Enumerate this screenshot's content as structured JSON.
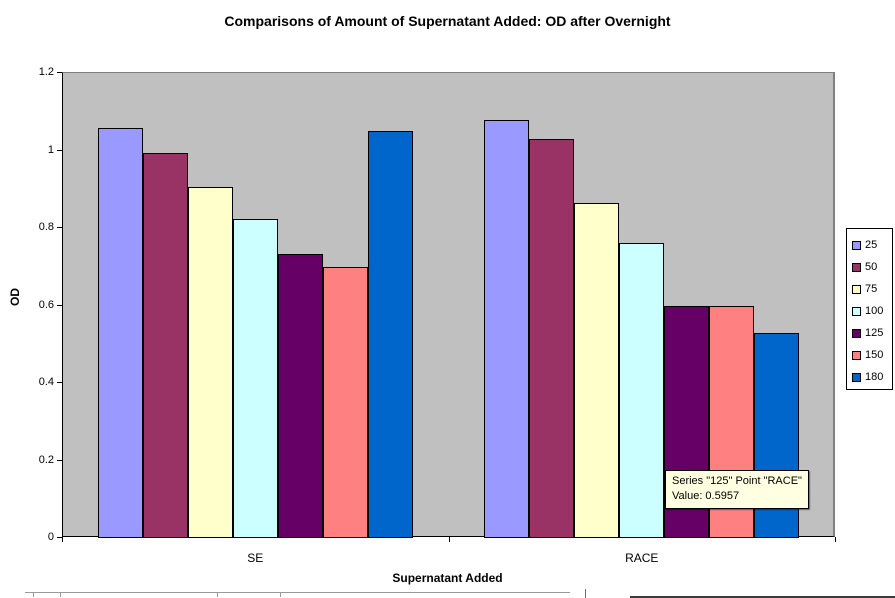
{
  "chart_data": {
    "type": "bar",
    "title": "Comparisons of Amount of Supernatant Added: OD after Overnight",
    "xlabel": "Supernatant Added",
    "ylabel": "OD",
    "categories": [
      "SE",
      "RACE"
    ],
    "series": [
      {
        "name": "25",
        "color": "#9999FF",
        "values": [
          1.055,
          1.075
        ]
      },
      {
        "name": "50",
        "color": "#993366",
        "values": [
          0.991,
          1.026
        ]
      },
      {
        "name": "75",
        "color": "#FFFFCC",
        "values": [
          0.902,
          0.861
        ]
      },
      {
        "name": "100",
        "color": "#CCFFFF",
        "values": [
          0.821,
          0.76
        ]
      },
      {
        "name": "125",
        "color": "#660066",
        "values": [
          0.73,
          0.5957
        ]
      },
      {
        "name": "150",
        "color": "#FF8080",
        "values": [
          0.698,
          0.596
        ]
      },
      {
        "name": "180",
        "color": "#0066CC",
        "values": [
          1.049,
          0.526
        ]
      }
    ],
    "ylim": [
      0,
      1.2
    ],
    "yticks": [
      "0",
      "0.2",
      "0.4",
      "0.6",
      "0.8",
      "1",
      "1.2"
    ],
    "grid": false,
    "legend_position": "right",
    "plot_bg": "#C0C0C0"
  },
  "tooltip": {
    "line1": "Series \"125\" Point \"RACE\"",
    "line2": "Value: 0.5957",
    "bg": "#FFFFE1"
  }
}
